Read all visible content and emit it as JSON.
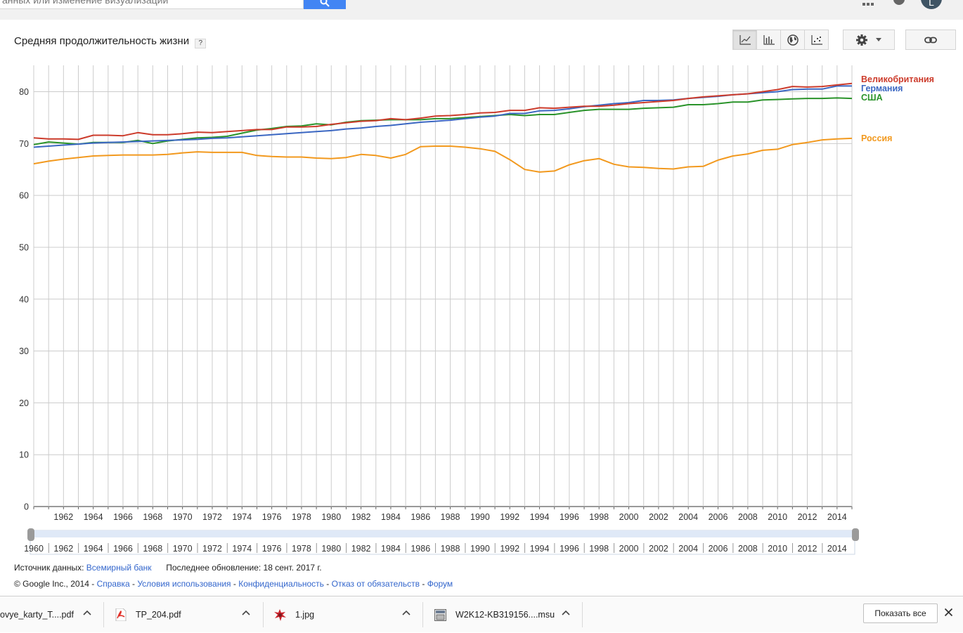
{
  "search": {
    "value": "анных или изменение визуализации"
  },
  "avatar": {
    "letter": "L"
  },
  "title": "Средняя продолжительность жизни",
  "help_label": "?",
  "view_buttons": [
    "line-chart-icon",
    "bar-chart-icon",
    "globe-icon",
    "scatter-chart-icon"
  ],
  "source": {
    "label": "Источник данных:",
    "link": "Всемирный банк",
    "updated": "Последнее обновление: 18 сент. 2017 г."
  },
  "footer": {
    "copyright": "© Google Inc., 2014 - ",
    "links": [
      "Справка",
      "Условия использования",
      "Конфиденциальность",
      "Отказ от обязательств",
      "Форум"
    ],
    "separator": " - "
  },
  "downloads": {
    "items": [
      "ovye_karty_T....pdf",
      "TP_204.pdf",
      "1.jpg",
      "W2K12-KB319156....msu"
    ],
    "show_all": "Показать все"
  },
  "chart_data": {
    "type": "line",
    "title": "",
    "ylim": [
      0,
      85
    ],
    "yticks": [
      0,
      10,
      20,
      30,
      40,
      50,
      60,
      70,
      80
    ],
    "xlim": [
      1960,
      2015
    ],
    "xticks": [
      1962,
      1964,
      1966,
      1968,
      1970,
      1972,
      1974,
      1976,
      1978,
      1980,
      1982,
      1984,
      1986,
      1988,
      1990,
      1992,
      1994,
      1996,
      1998,
      2000,
      2002,
      2004,
      2006,
      2008,
      2010,
      2012,
      2014
    ],
    "range_labels": [
      1960,
      1962,
      1964,
      1966,
      1968,
      1970,
      1972,
      1974,
      1976,
      1978,
      1980,
      1982,
      1984,
      1986,
      1988,
      1990,
      1992,
      1994,
      1996,
      1998,
      2000,
      2002,
      2004,
      2006,
      2008,
      2010,
      2012,
      2014
    ],
    "grid": true,
    "legend": "right",
    "x": [
      1960,
      1961,
      1962,
      1963,
      1964,
      1965,
      1966,
      1967,
      1968,
      1969,
      1970,
      1971,
      1972,
      1973,
      1974,
      1975,
      1976,
      1977,
      1978,
      1979,
      1980,
      1981,
      1982,
      1983,
      1984,
      1985,
      1986,
      1987,
      1988,
      1989,
      1990,
      1991,
      1992,
      1993,
      1994,
      1995,
      1996,
      1997,
      1998,
      1999,
      2000,
      2001,
      2002,
      2003,
      2004,
      2005,
      2006,
      2007,
      2008,
      2009,
      2010,
      2011,
      2012,
      2013,
      2014,
      2015
    ],
    "series": [
      {
        "name": "Великобритания",
        "color": "#cc3b2b",
        "values": [
          71.1,
          70.9,
          70.9,
          70.8,
          71.6,
          71.6,
          71.5,
          72.1,
          71.7,
          71.7,
          71.9,
          72.2,
          72.1,
          72.3,
          72.5,
          72.7,
          72.7,
          73.2,
          73.2,
          73.3,
          73.7,
          74.0,
          74.3,
          74.4,
          74.8,
          74.6,
          74.9,
          75.3,
          75.4,
          75.6,
          75.9,
          76.0,
          76.4,
          76.4,
          76.9,
          76.8,
          77.0,
          77.2,
          77.2,
          77.4,
          77.7,
          77.9,
          78.1,
          78.3,
          78.7,
          79.0,
          79.2,
          79.4,
          79.6,
          80.0,
          80.4,
          81.0,
          80.9,
          81.0,
          81.3,
          81.6
        ]
      },
      {
        "name": "Германия",
        "color": "#3b67c2",
        "values": [
          69.3,
          69.5,
          69.7,
          69.9,
          70.1,
          70.2,
          70.3,
          70.4,
          70.5,
          70.6,
          70.7,
          70.8,
          71.0,
          71.1,
          71.3,
          71.5,
          71.7,
          71.9,
          72.1,
          72.3,
          72.5,
          72.8,
          73.0,
          73.3,
          73.5,
          73.8,
          74.1,
          74.3,
          74.5,
          74.8,
          75.1,
          75.3,
          75.8,
          75.8,
          76.3,
          76.4,
          76.7,
          77.1,
          77.4,
          77.7,
          77.9,
          78.3,
          78.3,
          78.4,
          78.7,
          78.9,
          79.1,
          79.4,
          79.6,
          79.8,
          80.0,
          80.4,
          80.5,
          80.5,
          81.1,
          81.1
        ]
      },
      {
        "name": "США",
        "color": "#2a932a",
        "values": [
          69.8,
          70.3,
          70.1,
          69.9,
          70.2,
          70.2,
          70.2,
          70.6,
          70.0,
          70.5,
          70.8,
          71.1,
          71.2,
          71.4,
          72.0,
          72.6,
          72.9,
          73.3,
          73.4,
          73.8,
          73.6,
          74.1,
          74.4,
          74.5,
          74.6,
          74.6,
          74.6,
          74.8,
          74.8,
          75.0,
          75.2,
          75.4,
          75.6,
          75.4,
          75.6,
          75.6,
          76.0,
          76.4,
          76.6,
          76.6,
          76.6,
          76.8,
          76.9,
          77.0,
          77.5,
          77.5,
          77.7,
          78.0,
          78.0,
          78.4,
          78.5,
          78.6,
          78.7,
          78.7,
          78.8,
          78.7
        ]
      },
      {
        "name": "Россия",
        "color": "#f2991e",
        "values": [
          66.1,
          66.6,
          67.0,
          67.3,
          67.6,
          67.7,
          67.8,
          67.8,
          67.8,
          67.9,
          68.2,
          68.4,
          68.3,
          68.3,
          68.3,
          67.7,
          67.5,
          67.4,
          67.4,
          67.2,
          67.1,
          67.3,
          67.9,
          67.7,
          67.2,
          67.9,
          69.4,
          69.5,
          69.5,
          69.3,
          69.0,
          68.5,
          66.9,
          65.0,
          64.5,
          64.7,
          65.9,
          66.7,
          67.1,
          66.0,
          65.5,
          65.4,
          65.2,
          65.1,
          65.5,
          65.6,
          66.8,
          67.6,
          68.0,
          68.7,
          68.9,
          69.8,
          70.2,
          70.7,
          70.9,
          71.0
        ]
      }
    ]
  }
}
